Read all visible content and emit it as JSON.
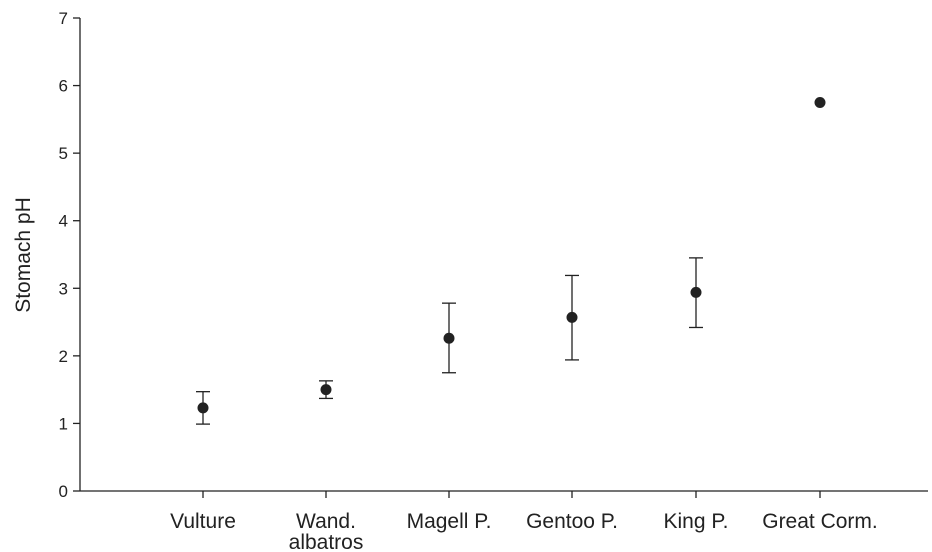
{
  "chart_data": {
    "type": "scatter",
    "title": "",
    "xlabel": "",
    "ylabel": "Stomach pH",
    "ylim": [
      0,
      7
    ],
    "yticks": [
      0,
      1,
      2,
      3,
      4,
      5,
      6,
      7
    ],
    "grid": false,
    "legend": "none",
    "categories": [
      {
        "lines": [
          "Vulture"
        ]
      },
      {
        "lines": [
          "Wand.",
          "albatros"
        ]
      },
      {
        "lines": [
          "Magell P."
        ]
      },
      {
        "lines": [
          "Gentoo P."
        ]
      },
      {
        "lines": [
          "King P."
        ]
      },
      {
        "lines": [
          "Great Corm."
        ]
      }
    ],
    "series": [
      {
        "values": [
          1.23,
          1.5,
          2.26,
          2.57,
          2.94,
          5.75
        ],
        "err_low": [
          0.99,
          1.37,
          1.75,
          1.94,
          2.42,
          null
        ],
        "err_high": [
          1.47,
          1.63,
          2.78,
          3.19,
          3.45,
          null
        ]
      }
    ],
    "colors": {
      "marker": "#222222",
      "axis": "#222222",
      "errorbar": "#222222"
    }
  }
}
